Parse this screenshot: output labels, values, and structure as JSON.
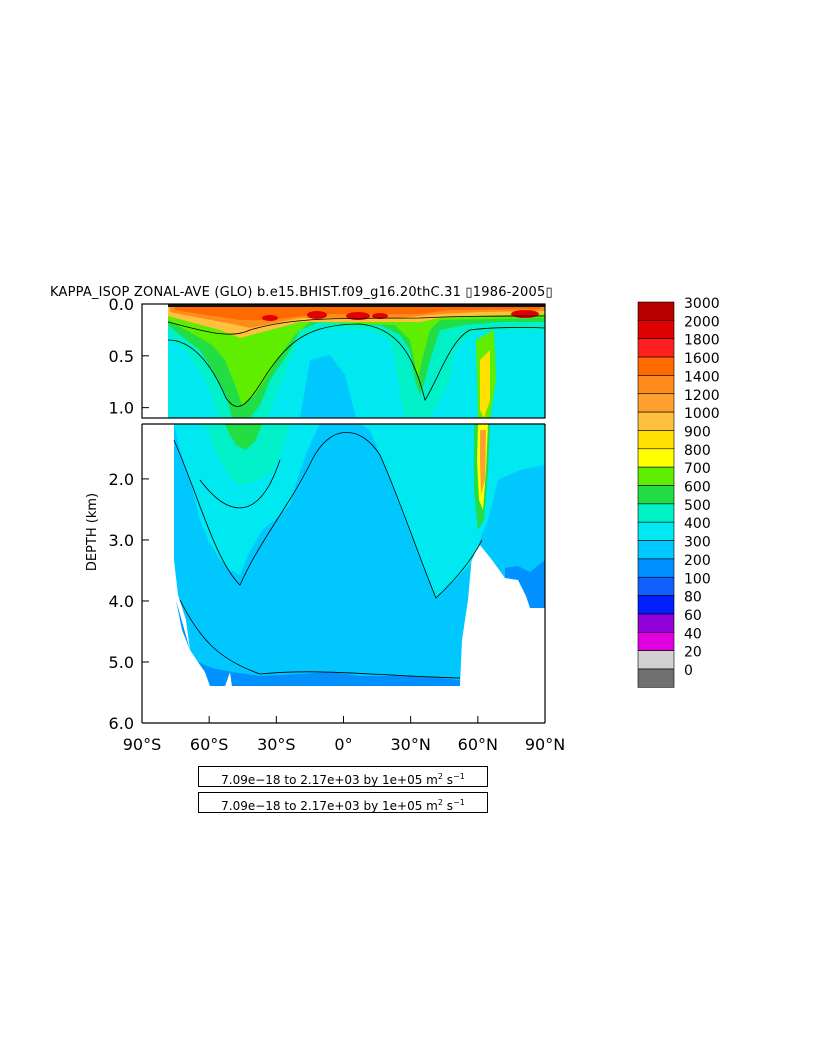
{
  "title": "KAPPA_ISOP ZONAL-AVE (GLO) b.e15.BHIST.f09_g16.20thC.31 ▯1986-2005▯",
  "chart_data": {
    "type": "heatmap",
    "title": "KAPPA_ISOP ZONAL-AVE (GLO) b.e15.BHIST.f09_g16.20thC.31 ▯1986-2005▯",
    "ylabel": "DEPTH (km)",
    "xlabel": "",
    "x_ticks": [
      "90°S",
      "60°S",
      "30°S",
      "0°",
      "30°N",
      "60°N",
      "90°N"
    ],
    "x_tick_values": [
      -90,
      -60,
      -30,
      0,
      30,
      60,
      90
    ],
    "xlim": [
      -90,
      90
    ],
    "upper_panel": {
      "ylim": [
        0,
        1.1
      ],
      "y_ticks": [
        "0.0",
        "0.5",
        "1.0"
      ],
      "y_tick_values": [
        0,
        0.5,
        1.0
      ]
    },
    "lower_panel": {
      "ylim": [
        1.1,
        6.0
      ],
      "y_ticks": [
        "2.0",
        "3.0",
        "4.0",
        "5.0",
        "6.0"
      ],
      "y_tick_values": [
        2,
        3,
        4,
        5,
        6
      ]
    },
    "colorbar": {
      "labels": [
        "3000",
        "2000",
        "1800",
        "1600",
        "1400",
        "1200",
        "1000",
        "900",
        "800",
        "700",
        "600",
        "500",
        "400",
        "300",
        "200",
        "100",
        "80",
        "60",
        "40",
        "20",
        "0"
      ],
      "colors": [
        "#b80000",
        "#e00000",
        "#ff2020",
        "#ff6a00",
        "#ff8c1a",
        "#ffa030",
        "#ffc040",
        "#ffe000",
        "#ffff00",
        "#60ee00",
        "#22dd44",
        "#00f0c8",
        "#00e8f0",
        "#00c8ff",
        "#0090ff",
        "#1060ff",
        "#0020ff",
        "#9000d8",
        "#e000e0",
        "#d0d0d0",
        "#707070"
      ]
    },
    "note": "7.09e−18 to 2.17e+03 by 1e+05 m² s⁻¹"
  },
  "info": {
    "line1": "7.09e−18 to 2.17e+03 by 1e+05 m",
    "line2": "7.09e−18 to 2.17e+03 by 1e+05 m",
    "unit_sup1": "2",
    "unit_mid": " s",
    "unit_sup2": "−1"
  }
}
